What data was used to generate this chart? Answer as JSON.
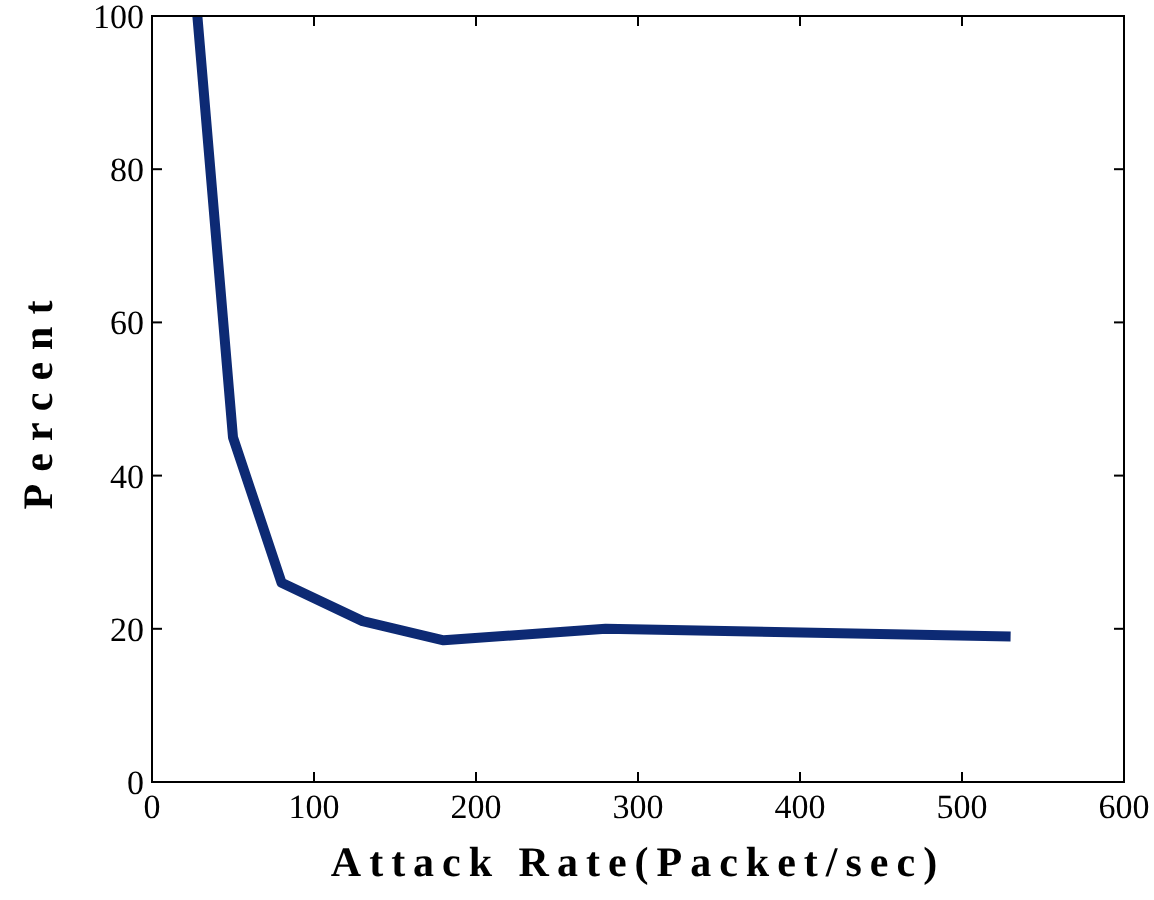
{
  "chart_data": {
    "type": "line",
    "xlabel": "Attack Rate(Packet/sec)",
    "ylabel": "Percent",
    "x": [
      28,
      50,
      80,
      130,
      180,
      280,
      530
    ],
    "series": [
      {
        "color": "#0d2a74",
        "values": [
          100,
          45,
          26,
          21,
          18.5,
          20,
          19
        ]
      }
    ],
    "xlim": [
      0,
      600
    ],
    "ylim": [
      0,
      100
    ],
    "xticks": [
      0,
      100,
      200,
      300,
      400,
      500,
      600
    ],
    "yticks": [
      0,
      20,
      40,
      60,
      80,
      100
    ],
    "grid": false,
    "marker": "none",
    "line_style": "solid"
  }
}
